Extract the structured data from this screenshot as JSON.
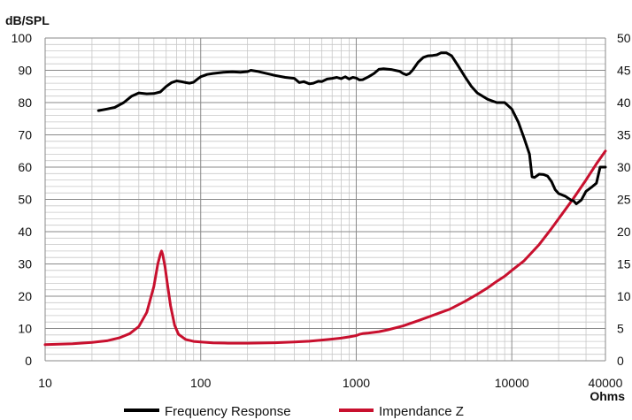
{
  "chart_data": {
    "type": "line",
    "x_scale": "log",
    "xlim": [
      10,
      40000
    ],
    "x_ticks": [
      "10",
      "100",
      "1000",
      "10000",
      "40000"
    ],
    "y_left": {
      "label": "dB/SPL",
      "lim": [
        0,
        100
      ],
      "ticks": [
        "0",
        "10",
        "20",
        "30",
        "40",
        "50",
        "60",
        "70",
        "80",
        "90",
        "100"
      ]
    },
    "y_right": {
      "label": "Ohms",
      "lim": [
        0,
        50
      ],
      "ticks": [
        "0",
        "5",
        "10",
        "15",
        "20",
        "25",
        "30",
        "35",
        "40",
        "45",
        "50"
      ]
    },
    "grid": true,
    "legend_position": "bottom",
    "series": [
      {
        "name": "Frequency Response",
        "axis": "left",
        "color": "#000000",
        "points": [
          [
            22,
            77.5
          ],
          [
            25,
            78
          ],
          [
            28,
            78.5
          ],
          [
            32,
            80
          ],
          [
            36,
            82
          ],
          [
            40,
            83
          ],
          [
            45,
            82.7
          ],
          [
            50,
            82.8
          ],
          [
            55,
            83.3
          ],
          [
            60,
            85
          ],
          [
            65,
            86.2
          ],
          [
            70,
            86.7
          ],
          [
            75,
            86.5
          ],
          [
            80,
            86.2
          ],
          [
            85,
            86
          ],
          [
            90,
            86.3
          ],
          [
            95,
            87.2
          ],
          [
            100,
            88
          ],
          [
            110,
            88.7
          ],
          [
            120,
            89
          ],
          [
            140,
            89.4
          ],
          [
            160,
            89.5
          ],
          [
            180,
            89.4
          ],
          [
            200,
            89.6
          ],
          [
            210,
            90
          ],
          [
            230,
            89.7
          ],
          [
            250,
            89.3
          ],
          [
            300,
            88.4
          ],
          [
            350,
            87.8
          ],
          [
            400,
            87.5
          ],
          [
            430,
            86.2
          ],
          [
            460,
            86.5
          ],
          [
            500,
            85.8
          ],
          [
            530,
            86
          ],
          [
            570,
            86.6
          ],
          [
            600,
            86.5
          ],
          [
            650,
            87.3
          ],
          [
            700,
            87.5
          ],
          [
            750,
            87.8
          ],
          [
            800,
            87.4
          ],
          [
            850,
            88
          ],
          [
            900,
            87.3
          ],
          [
            950,
            87.8
          ],
          [
            1000,
            87.6
          ],
          [
            1050,
            87
          ],
          [
            1100,
            87.1
          ],
          [
            1200,
            88
          ],
          [
            1300,
            89
          ],
          [
            1400,
            90.3
          ],
          [
            1500,
            90.5
          ],
          [
            1700,
            90.2
          ],
          [
            1900,
            89.7
          ],
          [
            2000,
            89
          ],
          [
            2100,
            88.6
          ],
          [
            2200,
            89
          ],
          [
            2300,
            90
          ],
          [
            2500,
            92.5
          ],
          [
            2700,
            94
          ],
          [
            2900,
            94.5
          ],
          [
            3100,
            94.6
          ],
          [
            3300,
            94.8
          ],
          [
            3500,
            95.4
          ],
          [
            3800,
            95.4
          ],
          [
            4100,
            94.5
          ],
          [
            4500,
            91.5
          ],
          [
            5000,
            88
          ],
          [
            5500,
            85
          ],
          [
            6000,
            83
          ],
          [
            7000,
            81
          ],
          [
            8000,
            80
          ],
          [
            9000,
            80
          ],
          [
            10000,
            78
          ],
          [
            11000,
            74
          ],
          [
            12000,
            69
          ],
          [
            13000,
            64
          ],
          [
            13500,
            57
          ],
          [
            14000,
            56.8
          ],
          [
            15000,
            57.8
          ],
          [
            16000,
            57.7
          ],
          [
            17000,
            57.2
          ],
          [
            18000,
            55.5
          ],
          [
            19000,
            53
          ],
          [
            20000,
            51.8
          ],
          [
            22000,
            51
          ],
          [
            24000,
            49.8
          ],
          [
            25000,
            49.5
          ],
          [
            26000,
            48.6
          ],
          [
            28000,
            49.8
          ],
          [
            30000,
            52.5
          ],
          [
            33000,
            54
          ],
          [
            35000,
            55
          ],
          [
            37000,
            60
          ],
          [
            40000,
            60
          ]
        ]
      },
      {
        "name": "Impendance Z",
        "axis": "right",
        "color": "#c8102e",
        "points": [
          [
            10,
            2.5
          ],
          [
            15,
            2.65
          ],
          [
            20,
            2.85
          ],
          [
            25,
            3.1
          ],
          [
            30,
            3.55
          ],
          [
            35,
            4.2
          ],
          [
            40,
            5.3
          ],
          [
            45,
            7.5
          ],
          [
            50,
            11.5
          ],
          [
            53,
            15
          ],
          [
            55,
            16.5
          ],
          [
            56,
            17
          ],
          [
            57,
            16.5
          ],
          [
            59,
            14.5
          ],
          [
            61,
            12
          ],
          [
            64,
            8.5
          ],
          [
            68,
            5.5
          ],
          [
            72,
            4.1
          ],
          [
            80,
            3.3
          ],
          [
            90,
            3
          ],
          [
            100,
            2.9
          ],
          [
            120,
            2.77
          ],
          [
            150,
            2.72
          ],
          [
            200,
            2.72
          ],
          [
            300,
            2.8
          ],
          [
            400,
            2.9
          ],
          [
            500,
            3.03
          ],
          [
            600,
            3.2
          ],
          [
            700,
            3.35
          ],
          [
            800,
            3.5
          ],
          [
            900,
            3.7
          ],
          [
            1000,
            3.9
          ],
          [
            1050,
            4.1
          ],
          [
            1100,
            4.2
          ],
          [
            1200,
            4.3
          ],
          [
            1400,
            4.5
          ],
          [
            1600,
            4.8
          ],
          [
            2000,
            5.4
          ],
          [
            2500,
            6.2
          ],
          [
            3000,
            6.9
          ],
          [
            3500,
            7.5
          ],
          [
            4000,
            8
          ],
          [
            5000,
            9.2
          ],
          [
            6000,
            10.3
          ],
          [
            7000,
            11.3
          ],
          [
            8000,
            12.3
          ],
          [
            9000,
            13.1
          ],
          [
            10000,
            14
          ],
          [
            12000,
            15.5
          ],
          [
            15000,
            18
          ],
          [
            18000,
            20.5
          ],
          [
            20000,
            22
          ],
          [
            25000,
            25.2
          ],
          [
            30000,
            28
          ],
          [
            35000,
            30.5
          ],
          [
            40000,
            32.5
          ]
        ]
      }
    ]
  }
}
